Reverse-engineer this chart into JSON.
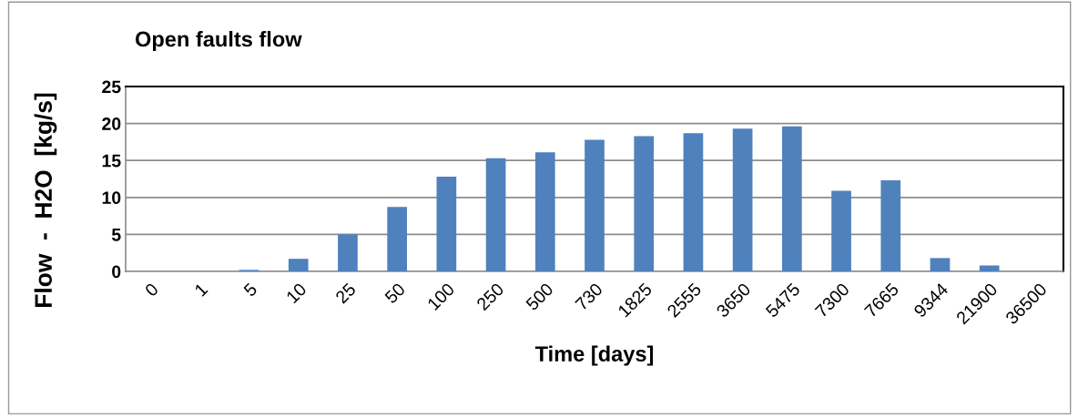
{
  "chart_data": {
    "type": "bar",
    "title": "Open faults flow",
    "xlabel": "Time [days]",
    "ylabel": "Flow  -  H2O  [kg/s]",
    "categories": [
      "0",
      "1",
      "5",
      "10",
      "25",
      "50",
      "100",
      "250",
      "500",
      "730",
      "1825",
      "2555",
      "3650",
      "5475",
      "7300",
      "7665",
      "9344",
      "21900",
      "36500"
    ],
    "values": [
      0,
      0,
      0.2,
      1.7,
      5.0,
      8.7,
      12.8,
      15.3,
      16.1,
      17.8,
      18.3,
      18.7,
      19.3,
      19.6,
      10.9,
      12.3,
      1.8,
      0.8,
      0
    ],
    "color": "#4f81bd",
    "ylim": [
      0,
      25
    ],
    "yticks": [
      0,
      5,
      10,
      15,
      20,
      25
    ],
    "grid": "y",
    "legend": false
  }
}
